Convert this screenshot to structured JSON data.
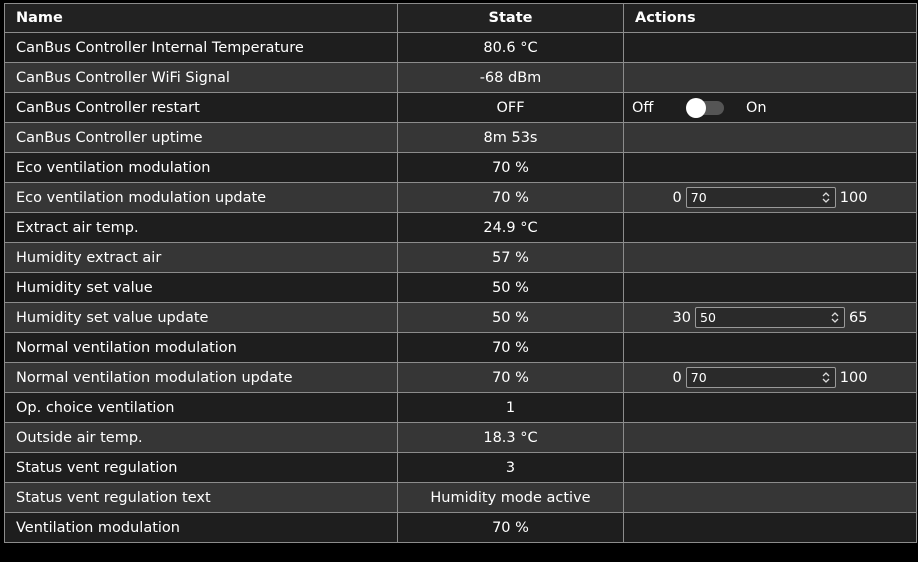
{
  "headers": {
    "name": "Name",
    "state": "State",
    "actions": "Actions"
  },
  "rows": [
    {
      "name": "CanBus Controller Internal Temperature",
      "state": "80.6 °C"
    },
    {
      "name": "CanBus Controller WiFi Signal",
      "state": "-68 dBm"
    },
    {
      "name": "CanBus Controller restart",
      "state": "OFF",
      "action": {
        "type": "switch",
        "off_label": "Off",
        "on_label": "On",
        "value": "off"
      }
    },
    {
      "name": "CanBus Controller uptime",
      "state": "8m 53s"
    },
    {
      "name": "Eco ventilation modulation",
      "state": "70 %"
    },
    {
      "name": "Eco ventilation modulation update",
      "state": "70 %",
      "action": {
        "type": "number",
        "min": "0",
        "max": "100",
        "value": "70"
      }
    },
    {
      "name": "Extract air temp.",
      "state": "24.9 °C"
    },
    {
      "name": "Humidity extract air",
      "state": "57 %"
    },
    {
      "name": "Humidity set value",
      "state": "50 %"
    },
    {
      "name": "Humidity set value update",
      "state": "50 %",
      "action": {
        "type": "number",
        "min": "30",
        "max": "65",
        "value": "50"
      }
    },
    {
      "name": "Normal ventilation modulation",
      "state": "70 %"
    },
    {
      "name": "Normal ventilation modulation update",
      "state": "70 %",
      "action": {
        "type": "number",
        "min": "0",
        "max": "100",
        "value": "70"
      }
    },
    {
      "name": "Op. choice ventilation",
      "state": "1"
    },
    {
      "name": "Outside air temp.",
      "state": "18.3 °C"
    },
    {
      "name": "Status vent regulation",
      "state": "3"
    },
    {
      "name": "Status vent regulation text",
      "state": "Humidity mode active"
    },
    {
      "name": "Ventilation modulation",
      "state": "70 %"
    }
  ]
}
